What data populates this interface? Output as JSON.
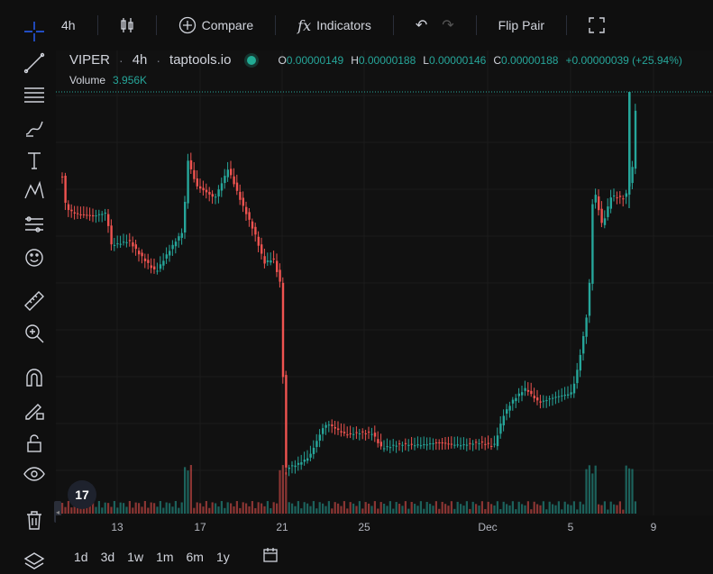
{
  "toolbar": {
    "interval": "4h",
    "compare": "Compare",
    "indicators": "Indicators",
    "flip_pair": "Flip Pair"
  },
  "legend": {
    "symbol": "VIPER",
    "interval": "4h",
    "source": "taptools.io",
    "o_label": "O",
    "o_value": "0.00000149",
    "h_label": "H",
    "h_value": "0.00000188",
    "l_label": "L",
    "l_value": "0.00000146",
    "c_label": "C",
    "c_value": "0.00000188",
    "change": "+0.00000039 (+25.94%)",
    "volume_label": "Volume",
    "volume_value": "3.956K"
  },
  "xaxis": {
    "labels": [
      "13",
      "17",
      "21",
      "25",
      "Dec",
      "5",
      "9"
    ]
  },
  "ranges": [
    "1d",
    "3d",
    "1w",
    "1m",
    "6m",
    "1y"
  ],
  "colors": {
    "up": "#26a69a",
    "down": "#ef5350",
    "bg": "#111111",
    "grid": "#1c1c1c"
  },
  "icons": [
    "crosshair-icon",
    "trendline-icon",
    "fib-icon",
    "brush-icon",
    "text-icon",
    "pattern-icon",
    "forecast-icon",
    "emoji-icon",
    "ruler-icon",
    "zoom-icon",
    "magnet-icon",
    "lock-pencil-icon",
    "lock-icon",
    "eye-icon",
    "trash-icon",
    "layers-icon"
  ]
}
